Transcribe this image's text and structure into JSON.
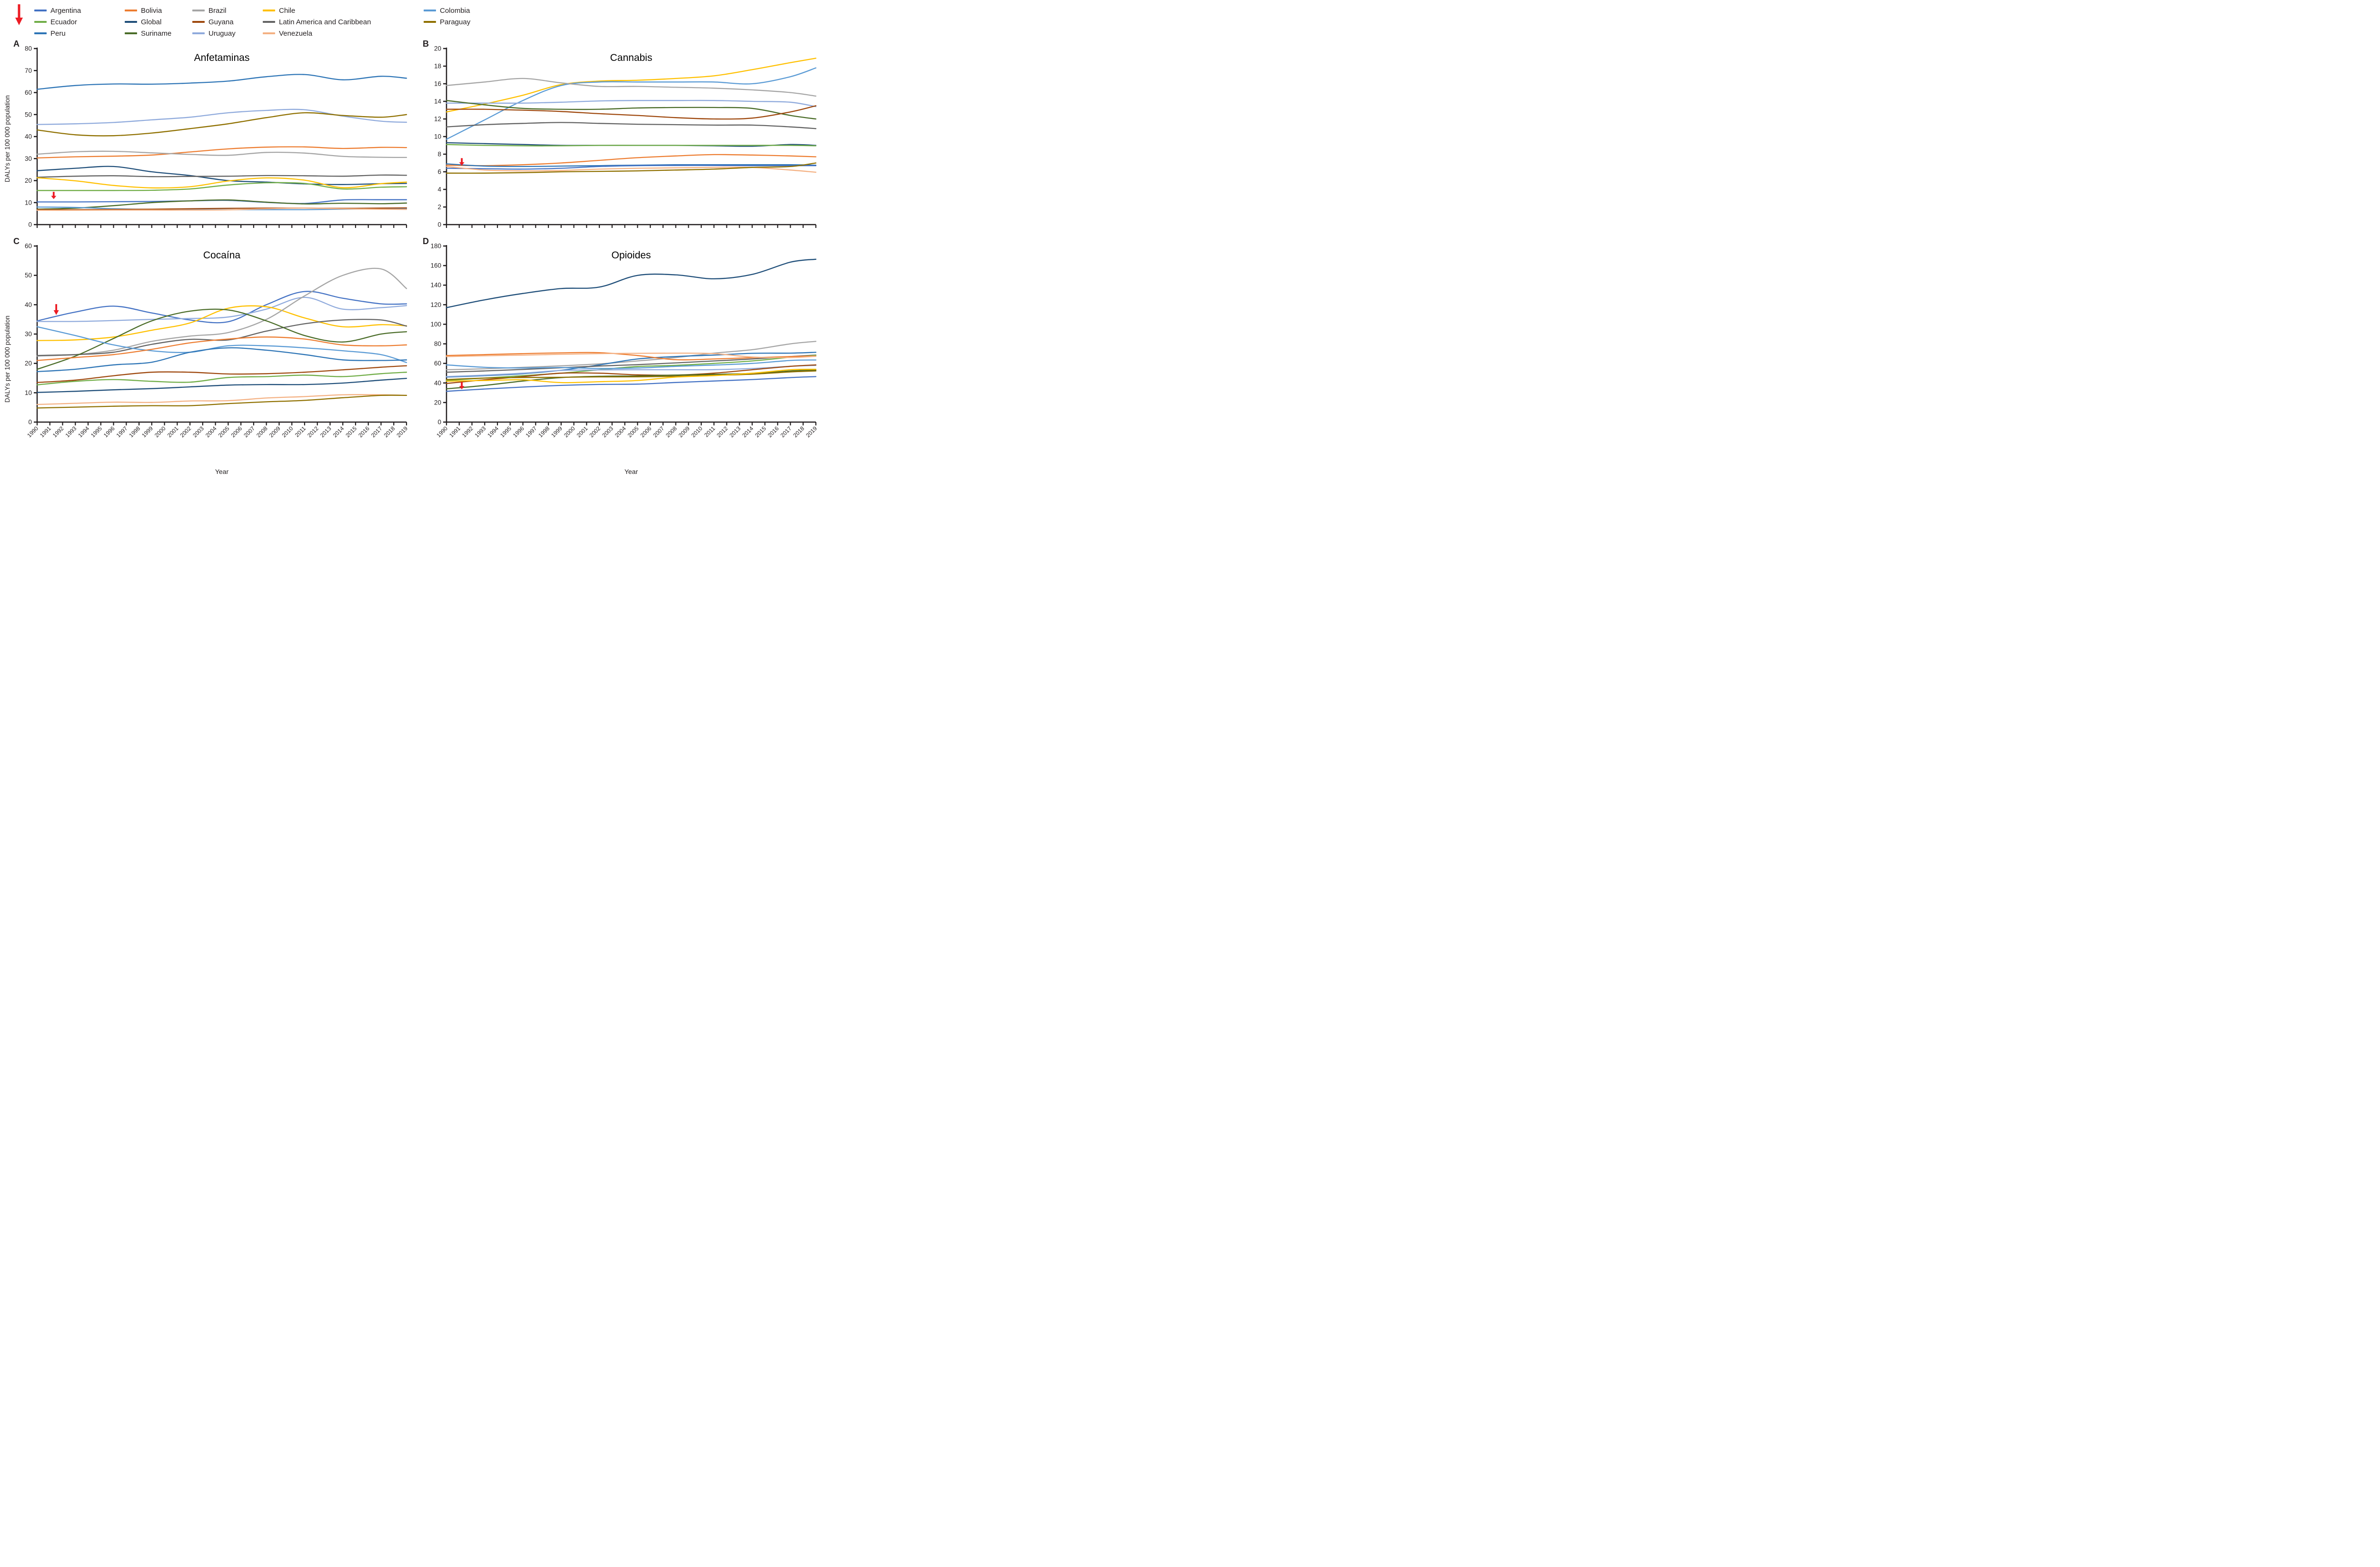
{
  "figure": {
    "y_axis_label": "DALYs per 100 000 population",
    "x_axis_label": "Year",
    "axis_color": "#231F20",
    "arrow_color": "#EC1C24"
  },
  "legend": {
    "arrow_icon": "red-down-arrow",
    "items": [
      {
        "label": "Argentina",
        "color": "#4472C4"
      },
      {
        "label": "Bolivia",
        "color": "#ED7D31"
      },
      {
        "label": "Brazil",
        "color": "#A5A5A5"
      },
      {
        "label": "Chile",
        "color": "#FFC000"
      },
      {
        "label": "Colombia",
        "color": "#5B9BD5"
      },
      {
        "label": "Ecuador",
        "color": "#70AD47"
      },
      {
        "label": "Global",
        "color": "#1F4E79"
      },
      {
        "label": "Guyana",
        "color": "#9E480E"
      },
      {
        "label": "Latin America and Caribbean",
        "color": "#636363"
      },
      {
        "label": "Paraguay",
        "color": "#8F7000"
      },
      {
        "label": "Peru",
        "color": "#2E75B6"
      },
      {
        "label": "Suriname",
        "color": "#4A6C28"
      },
      {
        "label": "Uruguay",
        "color": "#8FAADC"
      },
      {
        "label": "Venezuela",
        "color": "#F4B183"
      }
    ]
  },
  "chart_data": [
    {
      "panel": "A",
      "type": "line",
      "title": "Anfetaminas",
      "ylim": [
        0,
        80
      ],
      "ytick": 10,
      "xlim": [
        1990,
        2019
      ],
      "show_x_labels": false,
      "arrow": {
        "x": 1991.3,
        "y_tail": 14.9,
        "y_tip": 11.6
      },
      "x": [
        1990,
        1993,
        1996,
        1999,
        2002,
        2005,
        2008,
        2011,
        2014,
        2017,
        2019
      ],
      "series": [
        {
          "name": "Peru",
          "values": [
            61.5,
            63.2,
            63.9,
            63.8,
            64.3,
            65.2,
            67.2,
            68.2,
            65.8,
            67.4,
            66.5
          ]
        },
        {
          "name": "Uruguay",
          "values": [
            45.5,
            45.8,
            46.4,
            47.6,
            48.8,
            50.8,
            51.9,
            52.2,
            49.3,
            47,
            46.5
          ]
        },
        {
          "name": "Paraguay",
          "values": [
            43,
            40.8,
            40.4,
            41.6,
            43.6,
            45.8,
            48.6,
            50.8,
            49.6,
            48.8,
            50
          ]
        },
        {
          "name": "Bolivia",
          "values": [
            30.3,
            30.8,
            31.1,
            31.6,
            33,
            34.4,
            35.2,
            35.3,
            34.6,
            35.1,
            35
          ]
        },
        {
          "name": "Brazil",
          "values": [
            32,
            33.1,
            33.3,
            32.6,
            31.9,
            31.5,
            32.8,
            32.5,
            31,
            30.6,
            30.5
          ]
        },
        {
          "name": "Global",
          "values": [
            24.5,
            25.6,
            26.4,
            24,
            22.3,
            20,
            19.3,
            18.5,
            18.2,
            18.6,
            18.7
          ]
        },
        {
          "name": "Latin America and Caribbean",
          "values": [
            21.5,
            22,
            22.2,
            21.8,
            21.9,
            22,
            22.3,
            22.2,
            22,
            22.5,
            22.4
          ]
        },
        {
          "name": "Chile",
          "values": [
            21.3,
            19.9,
            17.8,
            16.7,
            17.2,
            19.8,
            21.2,
            20.2,
            16.8,
            18.6,
            19.3
          ]
        },
        {
          "name": "Ecuador",
          "values": [
            15.5,
            15.5,
            15.5,
            15.6,
            16.2,
            18,
            19,
            18.7,
            16.2,
            17,
            17.2
          ]
        },
        {
          "name": "Argentina",
          "values": [
            10.3,
            10.3,
            10.4,
            10.5,
            10.8,
            11,
            10.1,
            9.6,
            11.2,
            11.3,
            11.3
          ]
        },
        {
          "name": "Suriname",
          "values": [
            7,
            7.5,
            8.6,
            10,
            10.8,
            11.2,
            10.2,
            9.4,
            9.7,
            9.5,
            9.8
          ]
        },
        {
          "name": "Colombia",
          "values": [
            8,
            7.8,
            7.2,
            6.9,
            6.8,
            6.8,
            6.8,
            6.8,
            7,
            7.2,
            7.3
          ]
        },
        {
          "name": "Guyana",
          "values": [
            6.8,
            6.8,
            6.9,
            7,
            7.2,
            7.4,
            7.5,
            7.5,
            7.4,
            7.5,
            7.6
          ]
        },
        {
          "name": "Venezuela",
          "values": [
            6.5,
            6.5,
            6.6,
            6.6,
            6.6,
            6.7,
            7.2,
            7.5,
            7.2,
            7,
            6.9
          ]
        }
      ]
    },
    {
      "panel": "B",
      "type": "line",
      "title": "Cannabis",
      "ylim": [
        0,
        20
      ],
      "ytick": 2,
      "xlim": [
        1990,
        2019
      ],
      "show_x_labels": false,
      "arrow": {
        "x": 1991.2,
        "y_tail": 7.55,
        "y_tip": 6.7
      },
      "x": [
        1990,
        1993,
        1996,
        1999,
        2002,
        2005,
        2008,
        2011,
        2014,
        2017,
        2019
      ],
      "series": [
        {
          "name": "Chile",
          "values": [
            12.8,
            13.7,
            14.7,
            15.9,
            16.3,
            16.4,
            16.6,
            16.9,
            17.6,
            18.4,
            18.9
          ]
        },
        {
          "name": "Colombia",
          "values": [
            9.7,
            11.9,
            14.1,
            15.8,
            16.2,
            16.2,
            16.2,
            16.2,
            16,
            16.8,
            17.8
          ]
        },
        {
          "name": "Brazil",
          "values": [
            15.8,
            16.2,
            16.6,
            16.1,
            15.7,
            15.7,
            15.6,
            15.5,
            15.3,
            15,
            14.6
          ]
        },
        {
          "name": "Uruguay",
          "values": [
            13.8,
            13.8,
            13.8,
            13.9,
            14.05,
            14.1,
            14.1,
            14.1,
            14,
            13.9,
            13.4
          ]
        },
        {
          "name": "Suriname",
          "values": [
            14.1,
            13.6,
            13.2,
            13.1,
            13.1,
            13.25,
            13.3,
            13.3,
            13.2,
            12.4,
            12
          ]
        },
        {
          "name": "Guyana",
          "values": [
            13.1,
            13.1,
            13,
            12.85,
            12.6,
            12.4,
            12.15,
            12,
            12.1,
            12.8,
            13.5
          ]
        },
        {
          "name": "Latin America and Caribbean",
          "values": [
            11.1,
            11.35,
            11.5,
            11.6,
            11.5,
            11.4,
            11.35,
            11.3,
            11.3,
            11.1,
            10.9
          ]
        },
        {
          "name": "Global",
          "values": [
            9.3,
            9.2,
            9.1,
            9,
            9,
            9,
            9,
            8.95,
            8.9,
            9.1,
            9
          ]
        },
        {
          "name": "Ecuador",
          "values": [
            9.1,
            9,
            8.95,
            8.95,
            9,
            9,
            9,
            9,
            9,
            9,
            8.95
          ]
        },
        {
          "name": "Bolivia",
          "values": [
            6.75,
            6.7,
            6.8,
            7,
            7.3,
            7.6,
            7.8,
            7.95,
            7.9,
            7.8,
            7.7
          ]
        },
        {
          "name": "Peru",
          "values": [
            6.9,
            6.65,
            6.6,
            6.65,
            6.7,
            6.75,
            6.8,
            6.8,
            6.8,
            6.8,
            6.75
          ]
        },
        {
          "name": "Argentina",
          "values": [
            6.4,
            6.35,
            6.3,
            6.4,
            6.6,
            6.7,
            6.72,
            6.72,
            6.7,
            6.7,
            6.7
          ]
        },
        {
          "name": "Venezuela",
          "values": [
            6.6,
            6.2,
            6.1,
            6.15,
            6.3,
            6.4,
            6.45,
            6.5,
            6.5,
            6.2,
            5.95
          ]
        },
        {
          "name": "Paraguay",
          "values": [
            5.85,
            5.85,
            5.9,
            6,
            6.05,
            6.1,
            6.2,
            6.3,
            6.5,
            6.6,
            7
          ]
        }
      ]
    },
    {
      "panel": "C",
      "type": "line",
      "title": "Cocaína",
      "ylim": [
        0,
        60
      ],
      "ytick": 10,
      "xlim": [
        1990,
        2019
      ],
      "show_x_labels": true,
      "arrow": {
        "x": 1991.5,
        "y_tail": 40.2,
        "y_tip": 36.5
      },
      "x": [
        1990,
        1993,
        1996,
        1999,
        2002,
        2005,
        2008,
        2011,
        2014,
        2017,
        2019
      ],
      "series": [
        {
          "name": "Argentina",
          "values": [
            34.5,
            37.5,
            39.5,
            37.2,
            34.8,
            34.2,
            40,
            44.5,
            42.2,
            40.3,
            40.3
          ]
        },
        {
          "name": "Uruguay",
          "values": [
            34.3,
            34.3,
            34.6,
            35,
            35.3,
            35.8,
            38.5,
            42.5,
            38.5,
            39,
            39.7
          ]
        },
        {
          "name": "Chile",
          "values": [
            27.8,
            28,
            29,
            31.3,
            33.8,
            38.8,
            39.3,
            35.5,
            32.5,
            33.2,
            32.8
          ]
        },
        {
          "name": "Brazil",
          "values": [
            22.5,
            23,
            24.5,
            27.5,
            29.3,
            30.5,
            35,
            43,
            50,
            52.2,
            45.5
          ]
        },
        {
          "name": "Latin America and Caribbean",
          "values": [
            22.7,
            23,
            23.8,
            26.5,
            28.2,
            28,
            31,
            33.5,
            34.8,
            34.8,
            32.7
          ]
        },
        {
          "name": "Suriname",
          "values": [
            18,
            22.5,
            28.5,
            34.5,
            37.8,
            38.2,
            34.5,
            29.5,
            27.3,
            30,
            30.8
          ]
        },
        {
          "name": "Colombia",
          "values": [
            32.5,
            29.5,
            26.3,
            24.3,
            23.8,
            26,
            26,
            25.3,
            24.3,
            23,
            20.3
          ]
        },
        {
          "name": "Bolivia",
          "values": [
            21,
            22,
            23,
            24.8,
            27,
            28.3,
            29,
            28.3,
            26.3,
            26,
            26.3
          ]
        },
        {
          "name": "Peru",
          "values": [
            17.2,
            18,
            19.5,
            20.4,
            23.8,
            25.3,
            24.5,
            23,
            21.2,
            21,
            21.2
          ]
        },
        {
          "name": "Guyana",
          "values": [
            13.5,
            14.3,
            15.8,
            17,
            17,
            16.4,
            16.5,
            17,
            17.8,
            18.7,
            19.2
          ]
        },
        {
          "name": "Ecuador",
          "values": [
            12.7,
            13.9,
            14.5,
            13.9,
            13.6,
            15.2,
            15.5,
            16,
            15.5,
            16.5,
            17
          ]
        },
        {
          "name": "Global",
          "values": [
            10.1,
            10.5,
            11,
            11.4,
            12,
            12.6,
            12.8,
            12.8,
            13.3,
            14.3,
            14.9
          ]
        },
        {
          "name": "Venezuela",
          "values": [
            6,
            6.4,
            6.8,
            6.7,
            7.2,
            7.3,
            8.2,
            8.7,
            9.3,
            9.3,
            9.1
          ]
        },
        {
          "name": "Paraguay",
          "values": [
            4.8,
            5.1,
            5.4,
            5.6,
            5.6,
            6.3,
            6.9,
            7.4,
            8.3,
            9.1,
            9.1
          ]
        }
      ]
    },
    {
      "panel": "D",
      "type": "line",
      "title": "Opioides",
      "ylim": [
        0,
        180
      ],
      "ytick": 20,
      "xlim": [
        1990,
        2019
      ],
      "show_x_labels": true,
      "arrow": {
        "x": 1991.2,
        "y_tail": 41,
        "y_tip": 33.5
      },
      "x": [
        1990,
        1993,
        1996,
        1999,
        2002,
        2005,
        2008,
        2011,
        2014,
        2017,
        2019
      ],
      "series": [
        {
          "name": "Global",
          "values": [
            117,
            125,
            131.5,
            136.5,
            138,
            150,
            150.5,
            146.5,
            151,
            163.5,
            166.5
          ]
        },
        {
          "name": "Brazil",
          "values": [
            53.5,
            54.5,
            56,
            57.5,
            59.5,
            62.5,
            66,
            70.5,
            74,
            80,
            82.5
          ]
        },
        {
          "name": "Peru",
          "values": [
            46,
            47.5,
            49.5,
            53,
            58.5,
            64.5,
            67,
            68.5,
            70.3,
            70.5,
            71.3
          ]
        },
        {
          "name": "Latin America and Caribbean",
          "values": [
            51,
            52.3,
            53.8,
            55.5,
            57.3,
            58.7,
            60.5,
            62.5,
            64.5,
            67,
            68.5
          ]
        },
        {
          "name": "Ecuador",
          "values": [
            42.5,
            45,
            47.5,
            50,
            53.5,
            56.8,
            58,
            60,
            62.5,
            66.3,
            68.3
          ]
        },
        {
          "name": "Bolivia",
          "values": [
            68,
            69,
            70,
            70.8,
            71,
            68,
            63.8,
            64.5,
            65.8,
            67,
            67.5
          ]
        },
        {
          "name": "Venezuela",
          "values": [
            67,
            67.8,
            68.5,
            69.3,
            70,
            70.3,
            70.5,
            70,
            66.5,
            66,
            67.3
          ]
        },
        {
          "name": "Colombia",
          "values": [
            58.5,
            56,
            55.3,
            55.8,
            54.8,
            55.3,
            57,
            58.3,
            60,
            63,
            63.5
          ]
        },
        {
          "name": "Uruguay",
          "values": [
            46.5,
            48,
            50,
            52.8,
            53.3,
            53.5,
            53.5,
            53.6,
            54.8,
            57,
            58
          ]
        },
        {
          "name": "Guyana",
          "values": [
            39.5,
            43.3,
            46.5,
            50,
            50,
            48.3,
            48,
            50,
            53.5,
            57,
            58.5
          ]
        },
        {
          "name": "Suriname",
          "values": [
            34,
            37.5,
            42,
            45.5,
            46.8,
            47.2,
            48,
            48.8,
            49.8,
            52.3,
            53.2
          ]
        },
        {
          "name": "Paraguay",
          "values": [
            43.5,
            45,
            45.6,
            45.8,
            46.2,
            46.3,
            46.8,
            47.8,
            49,
            51.3,
            52.3
          ]
        },
        {
          "name": "Chile",
          "values": [
            41.8,
            42.5,
            43.2,
            40.4,
            41.3,
            42.5,
            46,
            47.5,
            50,
            53.5,
            54
          ]
        },
        {
          "name": "Argentina",
          "values": [
            31.5,
            33.8,
            35.8,
            37.5,
            38.5,
            38.8,
            40.5,
            42,
            43.5,
            45.5,
            46.5
          ]
        }
      ]
    }
  ]
}
